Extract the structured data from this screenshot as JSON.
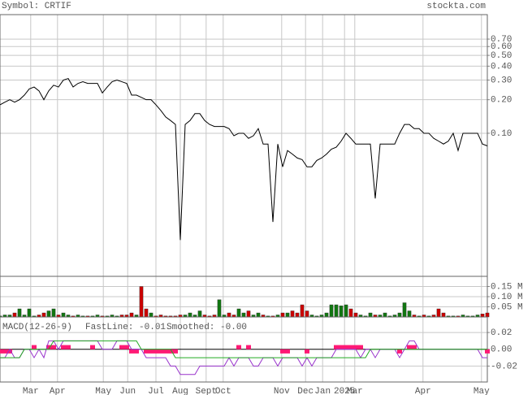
{
  "header": {
    "symbol": "Symbol: CRTIF",
    "site": "stockta.com"
  },
  "chart_data": [
    {
      "type": "line",
      "log_y": true,
      "grid": true,
      "color": "#000000",
      "x": [
        0,
        1,
        2,
        3,
        4,
        5,
        6,
        7,
        8,
        9,
        10,
        11,
        12,
        13,
        14,
        15,
        16,
        17,
        18,
        19,
        20,
        21,
        22,
        23,
        24,
        25,
        26,
        27,
        28,
        29,
        30,
        31,
        32,
        33,
        34,
        35,
        36,
        37,
        38,
        39,
        40,
        41,
        42,
        43,
        44,
        45,
        46,
        47,
        48,
        49,
        50,
        51,
        52,
        53,
        54,
        55,
        56,
        57,
        58,
        59,
        60,
        61,
        62,
        63,
        64,
        65,
        66,
        67,
        68,
        69,
        70,
        71,
        72,
        73,
        74,
        75,
        76,
        77,
        78,
        79,
        80,
        81,
        82,
        83,
        84,
        85,
        86,
        87,
        88,
        89,
        90,
        91,
        92,
        93,
        94,
        95,
        96,
        97,
        98,
        99,
        100
      ],
      "values": [
        0.18,
        0.19,
        0.2,
        0.19,
        0.2,
        0.22,
        0.25,
        0.26,
        0.24,
        0.2,
        0.24,
        0.27,
        0.26,
        0.3,
        0.31,
        0.26,
        0.28,
        0.29,
        0.28,
        0.28,
        0.28,
        0.23,
        0.26,
        0.29,
        0.3,
        0.29,
        0.28,
        0.22,
        0.22,
        0.21,
        0.2,
        0.2,
        0.18,
        0.16,
        0.14,
        0.13,
        0.12,
        0.011,
        0.12,
        0.13,
        0.15,
        0.15,
        0.13,
        0.12,
        0.115,
        0.115,
        0.115,
        0.11,
        0.095,
        0.1,
        0.1,
        0.09,
        0.095,
        0.11,
        0.08,
        0.08,
        0.016,
        0.08,
        0.05,
        0.07,
        0.065,
        0.06,
        0.058,
        0.05,
        0.05,
        0.057,
        0.06,
        0.065,
        0.072,
        0.075,
        0.085,
        0.1,
        0.09,
        0.08,
        0.08,
        0.08,
        0.08,
        0.026,
        0.08,
        0.08,
        0.08,
        0.08,
        0.1,
        0.12,
        0.12,
        0.11,
        0.11,
        0.1,
        0.1,
        0.09,
        0.085,
        0.08,
        0.085,
        0.1,
        0.07,
        0.1,
        0.1,
        0.1,
        0.1,
        0.08,
        0.077
      ],
      "xlim": [
        0,
        100
      ],
      "xticks": [
        {
          "value": 6.3,
          "label": "Mar"
        },
        {
          "value": 11.8,
          "label": "Apr"
        },
        {
          "value": 21.2,
          "label": "May"
        },
        {
          "value": 26.2,
          "label": "Jun"
        },
        {
          "value": 32,
          "label": "Jul"
        },
        {
          "value": 37,
          "label": "Aug"
        },
        {
          "value": 42.3,
          "label": "Sept"
        },
        {
          "value": 45.8,
          "label": "Oct"
        },
        {
          "value": 57.8,
          "label": "Nov"
        },
        {
          "value": 62.7,
          "label": "Dec"
        },
        {
          "value": 66.2,
          "label": "Jan"
        },
        {
          "value": 70.7,
          "label": "2025"
        },
        {
          "value": 72.8,
          "label": "Mar"
        },
        {
          "value": 86.8,
          "label": "Apr"
        },
        {
          "value": 98.8,
          "label": "May"
        }
      ],
      "ylim": [
        0.0052,
        1.16
      ],
      "yticks": [
        {
          "value": 0.7,
          "label": "0.70"
        },
        {
          "value": 0.6,
          "label": "0.60"
        },
        {
          "value": 0.5,
          "label": "0.50"
        },
        {
          "value": 0.4,
          "label": "0.40"
        },
        {
          "value": 0.3,
          "label": "0.30"
        },
        {
          "value": 0.2,
          "label": "0.20"
        },
        {
          "value": 0.1,
          "label": "0.10"
        }
      ]
    },
    {
      "type": "volume",
      "up_color": "#117711",
      "down_color": "#cc0000",
      "values": [
        0.005,
        0.01,
        0.01,
        0.02,
        0.04,
        0.01,
        0.04,
        0.005,
        0.01,
        0.02,
        0.03,
        0.04,
        0.01,
        0.02,
        0.01,
        0.005,
        0.01,
        0.005,
        0.005,
        0.005,
        0.01,
        0.005,
        0.005,
        0.01,
        0.005,
        0.01,
        0.01,
        0.02,
        0.01,
        0.15,
        0.04,
        0.02,
        0.005,
        0.01,
        0.005,
        0.005,
        0.005,
        0.01,
        0.01,
        0.02,
        0.01,
        0.03,
        0.01,
        0.005,
        0.01,
        0.085,
        0.01,
        0.02,
        0.01,
        0.04,
        0.02,
        0.03,
        0.01,
        0.02,
        0.01,
        0.005,
        0.005,
        0.01,
        0.02,
        0.02,
        0.03,
        0.02,
        0.06,
        0.03,
        0.01,
        0.005,
        0.01,
        0.02,
        0.06,
        0.06,
        0.055,
        0.06,
        0.04,
        0.02,
        0.01,
        0.005,
        0.02,
        0.01,
        0.01,
        0.02,
        0.005,
        0.01,
        0.02,
        0.07,
        0.03,
        0.01,
        0.005,
        0.01,
        0.005,
        0.01,
        0.04,
        0.02,
        0.005,
        0.005,
        0.005,
        0.01,
        0.005,
        0.005,
        0.01,
        0.015,
        0.02
      ],
      "ylim": [
        0,
        0.2
      ],
      "yticks": [
        {
          "value": 0.15,
          "label": "0.15 M"
        },
        {
          "value": 0.1,
          "label": "0.10 M"
        },
        {
          "value": 0.05,
          "label": "0.05 M"
        }
      ]
    },
    {
      "type": "macd",
      "title": "MACD(12-26-9)",
      "series": [
        {
          "name": "FastLine: -0.01",
          "color": "#9933cc",
          "values": [
            -0.01,
            -0.01,
            0,
            -0.01,
            -0.01,
            0,
            0,
            -0.01,
            0,
            -0.01,
            0.01,
            0.01,
            0,
            0.01,
            0.01,
            0.01,
            0.01,
            0.01,
            0.01,
            0.01,
            0.01,
            0,
            0,
            0,
            0.01,
            0.01,
            0.01,
            0,
            0,
            0,
            -0.01,
            -0.01,
            -0.01,
            -0.01,
            -0.01,
            -0.02,
            -0.02,
            -0.03,
            -0.03,
            -0.03,
            -0.03,
            -0.02,
            -0.02,
            -0.02,
            -0.02,
            -0.02,
            -0.02,
            -0.01,
            -0.02,
            -0.01,
            -0.01,
            -0.01,
            -0.02,
            -0.02,
            -0.01,
            -0.01,
            -0.01,
            -0.02,
            -0.01,
            -0.01,
            -0.01,
            -0.01,
            -0.02,
            -0.01,
            -0.02,
            -0.01,
            -0.01,
            -0.01,
            -0.01,
            0,
            0,
            0,
            0,
            0,
            -0.01,
            0,
            0,
            -0.01,
            0,
            0,
            0,
            0,
            -0.01,
            0,
            0.01,
            0.01,
            0,
            0,
            0,
            0,
            0,
            0,
            0,
            0,
            0,
            0,
            0,
            0,
            0,
            -0.01,
            -0.01
          ]
        },
        {
          "name": "Smoothed: -0.00",
          "color": "#22aa22",
          "values": [
            -0.01,
            -0.01,
            -0.01,
            -0.01,
            -0.01,
            0,
            0,
            0,
            0,
            0,
            0,
            0.01,
            0.01,
            0.01,
            0.01,
            0.01,
            0.01,
            0.01,
            0.01,
            0.01,
            0.01,
            0.01,
            0.01,
            0.01,
            0.01,
            0.01,
            0.01,
            0.01,
            0.01,
            0,
            0,
            0,
            0,
            0,
            0,
            0,
            -0.01,
            -0.01,
            -0.01,
            -0.01,
            -0.01,
            -0.01,
            -0.01,
            -0.01,
            -0.01,
            -0.01,
            -0.01,
            -0.01,
            -0.01,
            -0.01,
            -0.01,
            -0.01,
            -0.01,
            -0.01,
            -0.01,
            -0.01,
            -0.01,
            -0.01,
            -0.01,
            -0.01,
            -0.01,
            -0.01,
            -0.01,
            -0.01,
            -0.01,
            -0.01,
            -0.01,
            -0.01,
            -0.01,
            -0.01,
            -0.01,
            -0.01,
            -0.01,
            -0.01,
            -0.01,
            -0.01,
            0,
            0,
            0,
            0,
            0,
            0,
            0,
            0,
            0,
            0,
            0,
            0,
            0,
            0,
            0,
            0,
            0,
            0,
            0,
            0,
            0,
            0,
            0,
            0,
            0
          ]
        }
      ],
      "histogram": {
        "color": "#ff1a75",
        "values": [
          -0.005,
          -0.005,
          -0.005,
          0,
          0,
          0,
          0,
          0.005,
          0,
          0,
          0.005,
          0.005,
          0,
          0.005,
          0.005,
          0,
          0,
          0,
          0,
          0.005,
          0,
          0,
          0,
          0,
          0,
          0.005,
          0.005,
          -0.005,
          -0.005,
          0,
          -0.005,
          -0.005,
          -0.005,
          -0.005,
          -0.005,
          -0.005,
          -0.005,
          0,
          0,
          0,
          0,
          0,
          0,
          0,
          0,
          0,
          0,
          0,
          0,
          0.005,
          0,
          0.005,
          0,
          0,
          0,
          0,
          0,
          0,
          -0.005,
          -0.005,
          0,
          0,
          0,
          -0.005,
          0,
          0,
          0,
          0,
          0,
          0.005,
          0.005,
          0.005,
          0.005,
          0.005,
          0.005,
          0,
          0,
          0,
          0,
          0,
          0,
          0,
          -0.005,
          0,
          0.005,
          0.005,
          0,
          0,
          0,
          0,
          0,
          0,
          0,
          0,
          0,
          0,
          0,
          0,
          0,
          0,
          -0.005
        ]
      },
      "ylim": [
        -0.039,
        0.0385
      ],
      "yticks": [
        {
          "value": 0.02,
          "label": "0.02"
        },
        {
          "value": 0,
          "label": "0.00"
        },
        {
          "value": -0.02,
          "label": "-0.02"
        }
      ]
    }
  ]
}
